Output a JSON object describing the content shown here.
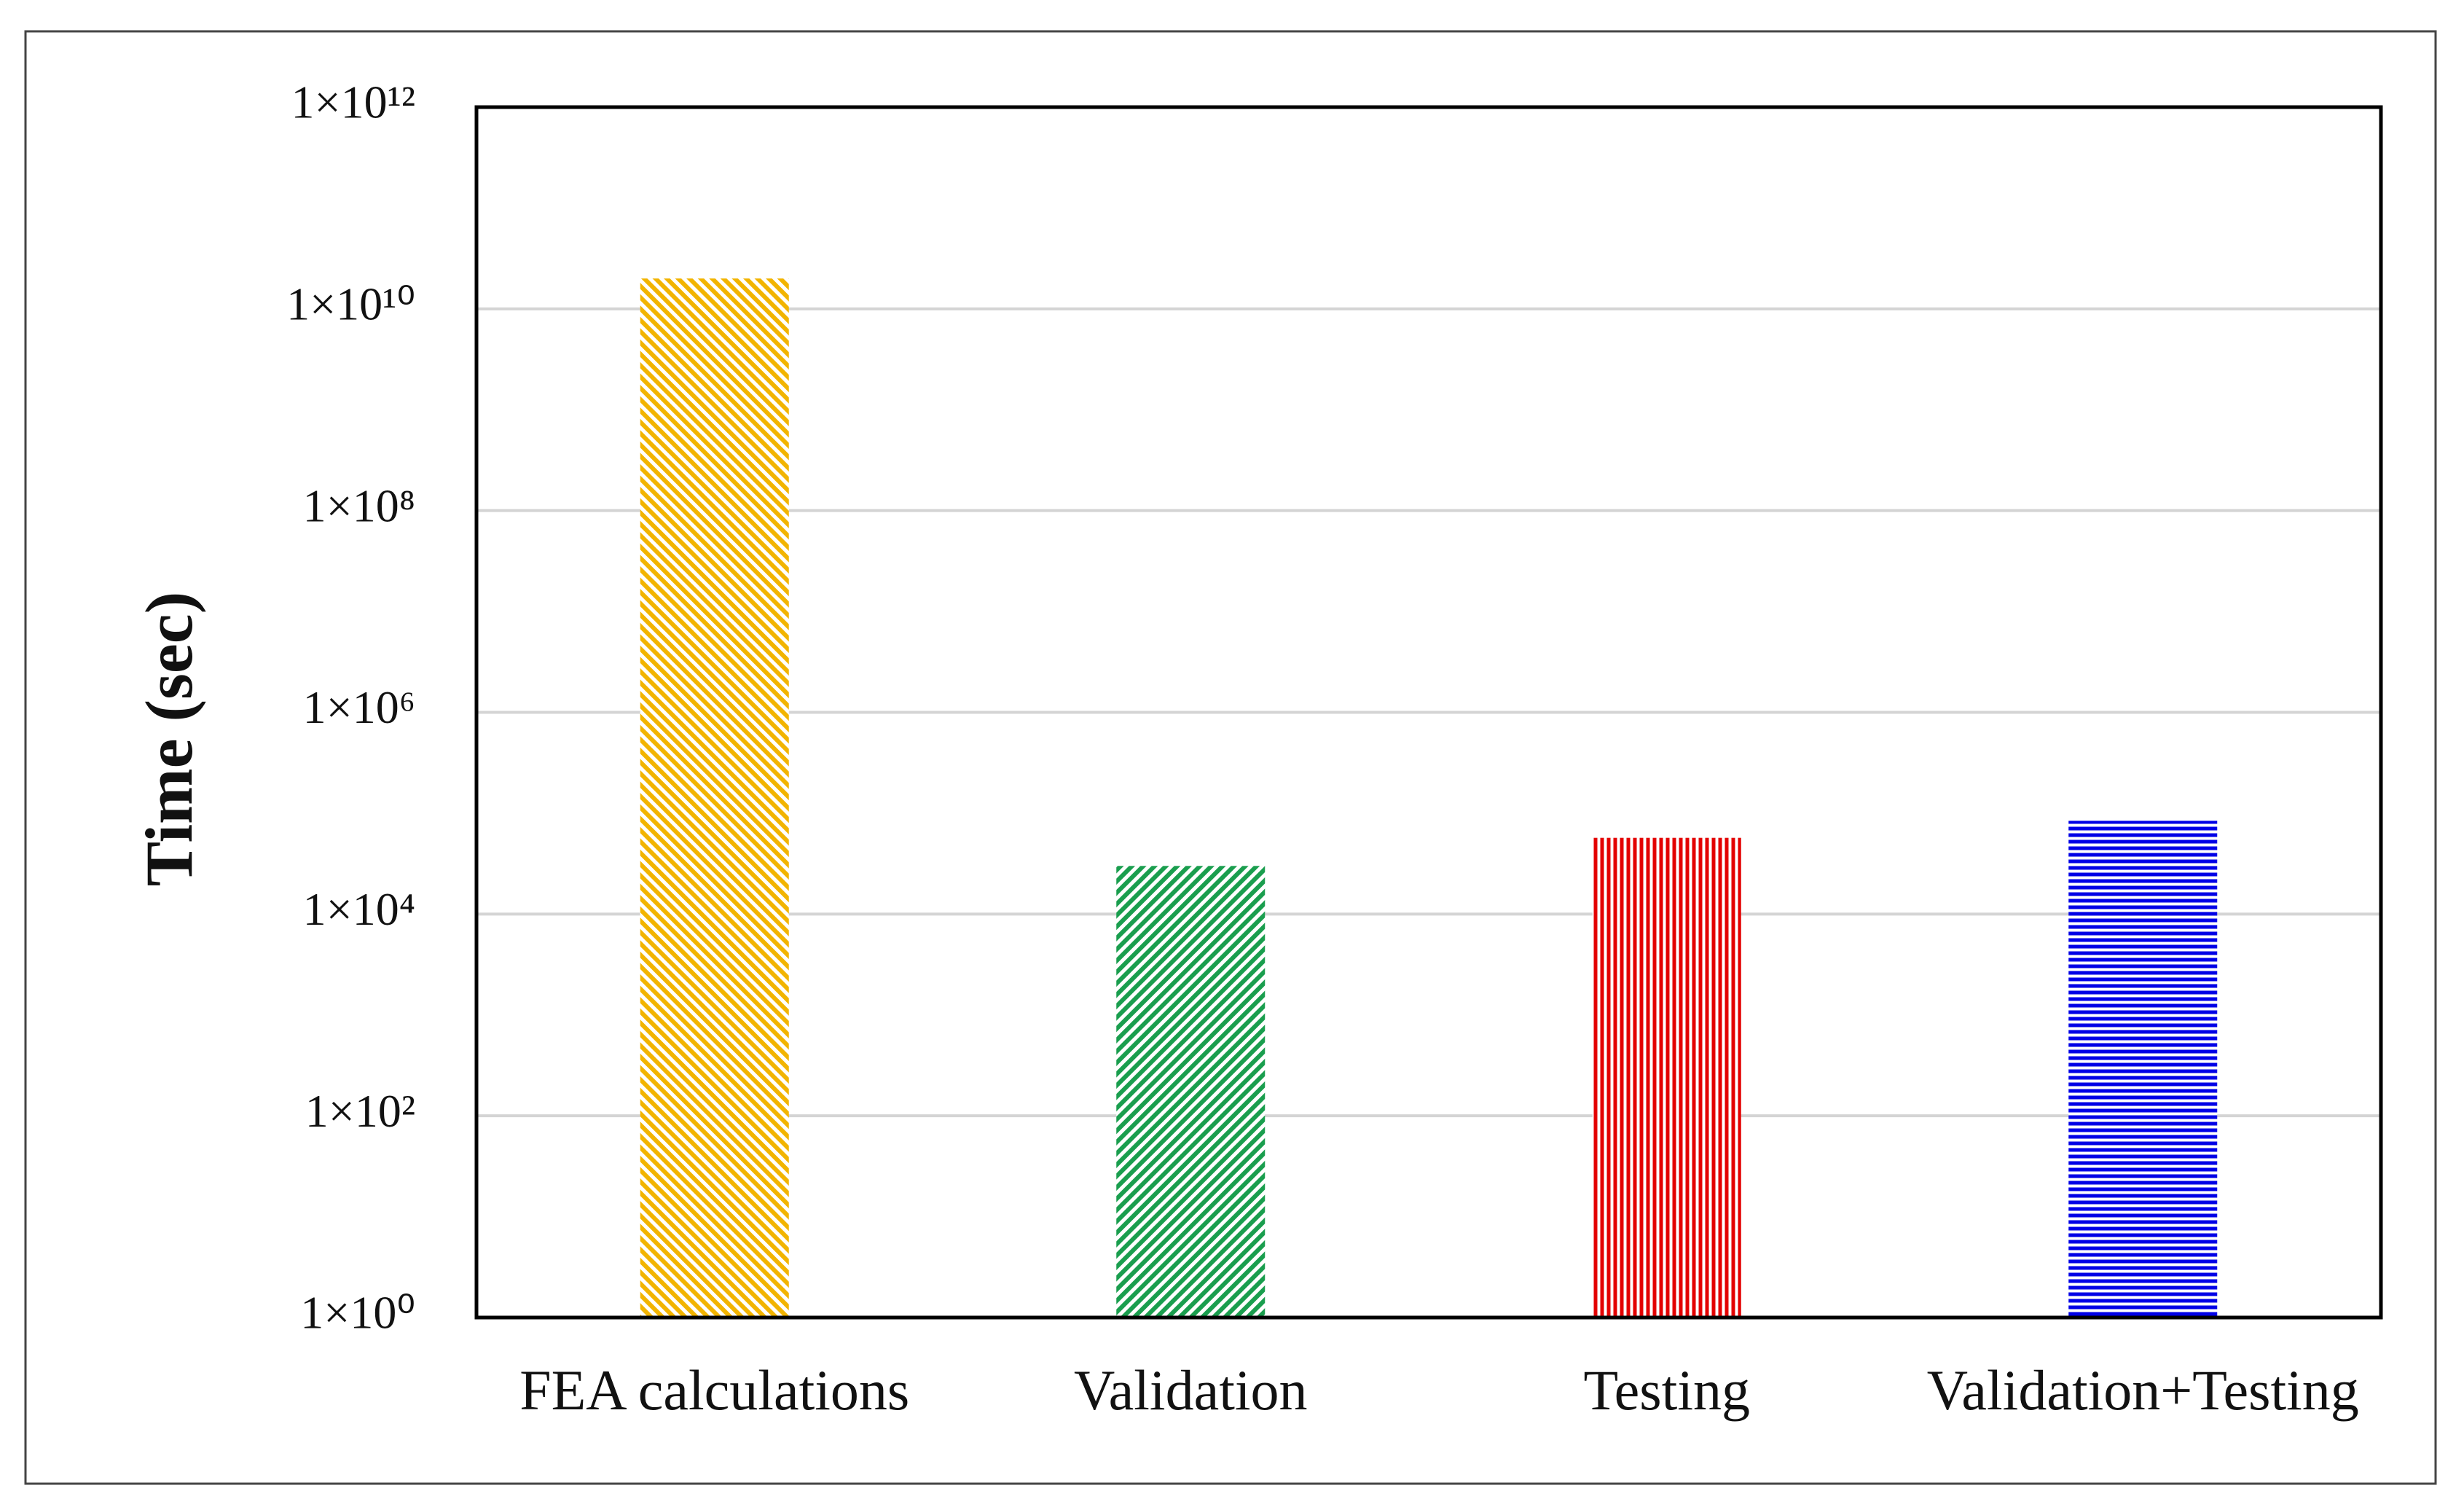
{
  "chart_data": {
    "type": "bar",
    "y_label": "Time (sec)",
    "categories": [
      "FEA calculations",
      "Validation",
      "Testing",
      "Validation+Testing"
    ],
    "values": [
      20000000000,
      30000,
      57000,
      84000
    ],
    "colors": [
      "#f2b400",
      "#1a9e4e",
      "#e30000",
      "#0000e6"
    ],
    "hatches": [
      "diagonal-down",
      "diagonal-up",
      "vertical",
      "horizontal"
    ],
    "yscale": "log",
    "ylim": [
      1,
      1000000000000
    ],
    "yticks": [
      {
        "value": 1,
        "label": "1×10⁰"
      },
      {
        "value": 100,
        "label": "1×10²"
      },
      {
        "value": 10000,
        "label": "1×10⁴"
      },
      {
        "value": 1000000,
        "label": "1×10⁶"
      },
      {
        "value": 100000000,
        "label": "1×10⁸"
      },
      {
        "value": 10000000000,
        "label": "1×10¹⁰"
      },
      {
        "value": 1000000000000,
        "label": "1×10¹²"
      }
    ],
    "grid": true
  }
}
